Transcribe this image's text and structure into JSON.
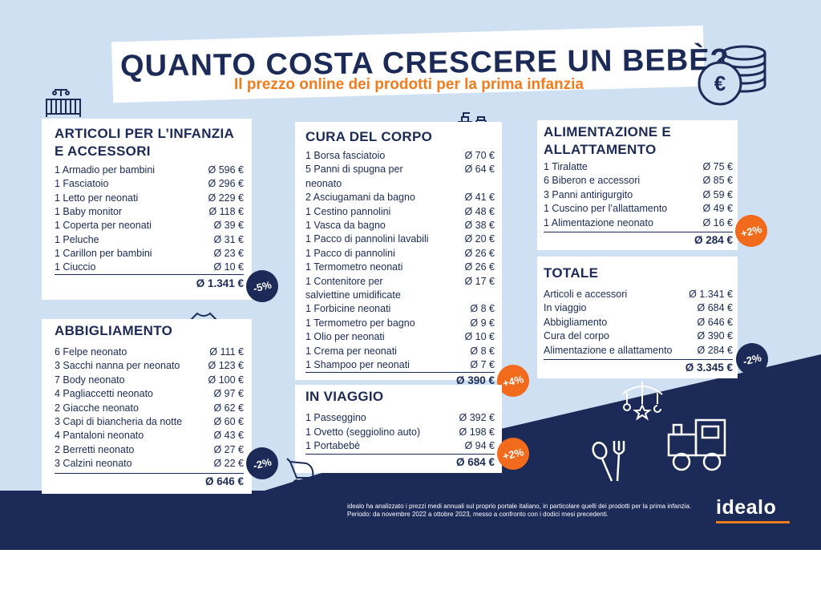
{
  "title": "QUANTO COSTA CRESCERE UN BEBÈ?",
  "subtitle": "Il prezzo online dei prodotti per la prima infanzia",
  "colors": {
    "navy": "#1b2a57",
    "orange": "#f26a1b",
    "background": "#cfe0f2"
  },
  "sections": {
    "articoli": {
      "title_line1": "ARTICOLI PER L’INFANZIA",
      "title_line2": "E ACCESSORI",
      "items": [
        {
          "label": "1 Armadio per bambini",
          "value": "Ø 596 €"
        },
        {
          "label": "1 Fasciatoio",
          "value": "Ø 296 €"
        },
        {
          "label": "1 Letto per neonati",
          "value": "Ø 229 €"
        },
        {
          "label": "1 Baby monitor",
          "value": "Ø 118 €"
        },
        {
          "label": "1 Coperta per neonati",
          "value": "Ø 39 €"
        },
        {
          "label": "1 Peluche",
          "value": "Ø 31 €"
        },
        {
          "label": "1 Carillon per bambini",
          "value": "Ø 23 €"
        },
        {
          "label": "1 Ciuccio",
          "value": "Ø 10 €"
        }
      ],
      "total": "Ø 1.341 €",
      "change": "-5%",
      "icon": "crib-icon"
    },
    "abbigliamento": {
      "title": "ABBIGLIAMENTO",
      "items": [
        {
          "label": "6 Felpe neonato",
          "value": "Ø 111 €"
        },
        {
          "label": "3 Sacchi nanna per neonato",
          "value": "Ø 123 €"
        },
        {
          "label": "7 Body neonato",
          "value": "Ø 100 €"
        },
        {
          "label": "4 Pagliaccetti neonato",
          "value": "Ø 97 €"
        },
        {
          "label": "2 Giacche neonato",
          "value": "Ø 62 €"
        },
        {
          "label": "3 Capi di biancheria da notte",
          "value": "Ø 60 €"
        },
        {
          "label": "4 Pantaloni neonato",
          "value": "Ø 43 €"
        },
        {
          "label": "2 Berretti neonato",
          "value": "Ø 27 €"
        },
        {
          "label": "3 Calzini neonato",
          "value": "Ø 22 €"
        }
      ],
      "total": "Ø 646 €",
      "change": "-2%",
      "icon": "onesie-icon"
    },
    "cura": {
      "title": "CURA DEL CORPO",
      "items": [
        {
          "label": "1 Borsa fasciatoio",
          "value": "Ø 70 €"
        },
        {
          "label": "5 Panni di spugna per",
          "label2": "neonato",
          "value": "Ø 64 €"
        },
        {
          "label": "2 Asciugamani da bagno",
          "value": "Ø 41 €"
        },
        {
          "label": "1 Cestino pannolini",
          "value": "Ø 48 €"
        },
        {
          "label": "1 Vasca da bagno",
          "value": "Ø 38 €"
        },
        {
          "label": "1 Pacco di pannolini lavabili",
          "value": "Ø 20 €"
        },
        {
          "label": "1 Pacco di pannolini",
          "value": "Ø 26 €"
        },
        {
          "label": "1 Termometro neonati",
          "value": "Ø 26 €"
        },
        {
          "label": "1 Contenitore per",
          "label2": "salviettine umidificate",
          "value": "Ø 17 €"
        },
        {
          "label": "1 Forbicine neonati",
          "value": "Ø 8 €"
        },
        {
          "label": "1 Termometro per bagno",
          "value": "Ø 9 €"
        },
        {
          "label": "1 Olio per neonati",
          "value": "Ø 10 €"
        },
        {
          "label": "1 Crema per neonati",
          "value": "Ø 8 €"
        },
        {
          "label": "1 Shampoo per neonati",
          "value": "Ø 7 €"
        }
      ],
      "total": "Ø 390 €",
      "change": "+4%",
      "icon": "lotion-bottles-icon"
    },
    "viaggio": {
      "title": "IN VIAGGIO",
      "items": [
        {
          "label": "1 Passeggino",
          "value": "Ø 392 €"
        },
        {
          "label": "1 Ovetto (seggiolino auto)",
          "value": "Ø 198 €"
        },
        {
          "label": "1 Portabebè",
          "value": "Ø 94 €"
        }
      ],
      "total": "Ø 684 €",
      "change": "+2%",
      "icon": "stroller-icon"
    },
    "alimentazione": {
      "title_line1": "ALIMENTAZIONE E",
      "title_line2": "ALLATTAMENTO",
      "items": [
        {
          "label": "1 Tiralatte",
          "value": "Ø 75 €"
        },
        {
          "label": "6 Biberon e accessori",
          "value": "Ø 85 €"
        },
        {
          "label": "3 Panni antirigurgito",
          "value": "Ø 59 €"
        },
        {
          "label": "1 Cuscino per l’allattamento",
          "value": "Ø 49 €"
        },
        {
          "label": "1 Alimentazione neonato",
          "value": "Ø 16 €"
        }
      ],
      "total": "Ø 284 €",
      "change": "+2%",
      "icon": "baby-bottle-icon"
    },
    "totale": {
      "title": "TOTALE",
      "items": [
        {
          "label": "Articoli e accessori",
          "value": "Ø 1.341 €"
        },
        {
          "label": "In viaggio",
          "value": "Ø 684 €"
        },
        {
          "label": "Abbigliamento",
          "value": "Ø 646 €"
        },
        {
          "label": "Cura del corpo",
          "value": "Ø 390 €"
        },
        {
          "label": "Alimentazione e allattamento",
          "value": "Ø 284 €"
        }
      ],
      "total": "Ø 3.345 €",
      "change": "-2%"
    }
  },
  "footnote_line1": "idealo ha analizzato i prezzi medi annuali sul proprio portale italiano, in particolare quelli dei prodotti per la prima infanzia.",
  "footnote_line2": "Periodo: da novembre 2022 a ottobre 2023, messo a confronto con i dodici mesi precedenti.",
  "logo": "idealo",
  "decor_icons": [
    "coins-euro-icon",
    "baby-mobile-icon",
    "toy-train-icon",
    "spoon-fork-icon"
  ]
}
